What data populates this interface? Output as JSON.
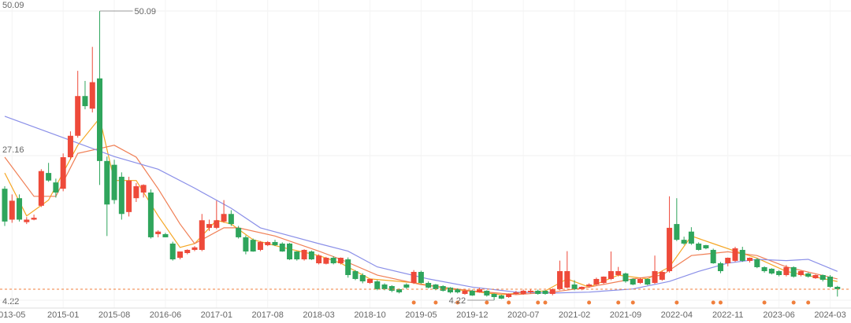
{
  "chart_data": {
    "type": "candlestick",
    "up_color": "#ee4a3a",
    "down_color": "#2fa55c",
    "ylim": [
      4.22,
      50.09
    ],
    "yticks": [
      4.22,
      27.16,
      50.09
    ],
    "grid": true,
    "categories": [
      null,
      "013-05",
      null,
      null,
      null,
      null,
      null,
      null,
      "2015-01",
      null,
      null,
      null,
      null,
      null,
      null,
      "2015-08",
      null,
      null,
      null,
      null,
      null,
      null,
      "2016-06",
      null,
      null,
      null,
      null,
      null,
      null,
      "2017-01",
      null,
      null,
      null,
      null,
      null,
      null,
      "2017-08",
      null,
      null,
      null,
      null,
      null,
      null,
      "2018-03",
      null,
      null,
      null,
      null,
      null,
      null,
      "2018-10",
      null,
      null,
      null,
      null,
      null,
      null,
      "2019-05",
      null,
      null,
      null,
      null,
      null,
      null,
      "2019-12",
      null,
      null,
      null,
      null,
      null,
      null,
      "2020-07",
      null,
      null,
      null,
      null,
      null,
      null,
      "2021-02",
      null,
      null,
      null,
      null,
      null,
      null,
      "2021-09",
      null,
      null,
      null,
      null,
      null,
      null,
      "2022-04",
      null,
      null,
      null,
      null,
      null,
      null,
      "2022-11",
      null,
      null,
      null,
      null,
      null,
      null,
      "2023-06",
      null,
      null,
      null,
      null,
      null,
      null,
      "2024-03",
      null
    ],
    "ohlc": [
      [
        21.9,
        22.3,
        16.0,
        16.7
      ],
      [
        17.0,
        21.0,
        16.5,
        20.0
      ],
      [
        20.4,
        21.0,
        16.7,
        17.0
      ],
      [
        16.6,
        17.4,
        16.3,
        17.0
      ],
      [
        17.0,
        17.8,
        16.9,
        17.3
      ],
      [
        19.2,
        25.0,
        19.0,
        24.7
      ],
      [
        24.4,
        26.0,
        23.0,
        23.2
      ],
      [
        22.9,
        23.5,
        20.5,
        21.3
      ],
      [
        21.9,
        27.5,
        21.5,
        26.9
      ],
      [
        26.9,
        31.0,
        26.5,
        30.3
      ],
      [
        30.3,
        40.6,
        30.0,
        36.6
      ],
      [
        36.6,
        39.0,
        34.5,
        35.0
      ],
      [
        34.6,
        44.4,
        34.0,
        38.8
      ],
      [
        39.4,
        50.09,
        22.5,
        26.3
      ],
      [
        26.3,
        27.0,
        14.4,
        19.4
      ],
      [
        25.7,
        26.5,
        19.5,
        20.1
      ],
      [
        23.8,
        24.5,
        17.0,
        17.9
      ],
      [
        18.2,
        23.8,
        17.5,
        23.2
      ],
      [
        20.4,
        22.8,
        19.8,
        22.3
      ],
      [
        21.3,
        22.6,
        20.5,
        22.5
      ],
      [
        21.3,
        21.8,
        14.0,
        14.2
      ],
      [
        14.7,
        15.3,
        14.2,
        15.1
      ],
      [
        14.7,
        14.9,
        14.2,
        14.2
      ],
      [
        13.2,
        13.5,
        10.5,
        10.7
      ],
      [
        10.95,
        11.9,
        10.7,
        11.95
      ],
      [
        11.7,
        12.3,
        11.5,
        12.2
      ],
      [
        12.2,
        12.8,
        12.0,
        12.6
      ],
      [
        12.2,
        17.9,
        12.0,
        16.9
      ],
      [
        15.7,
        17.0,
        15.2,
        16.3
      ],
      [
        15.7,
        20.0,
        15.5,
        16.9
      ],
      [
        16.7,
        20.1,
        16.5,
        17.9
      ],
      [
        17.9,
        18.5,
        16.0,
        16.3
      ],
      [
        15.7,
        16.0,
        14.0,
        14.2
      ],
      [
        14.2,
        14.5,
        11.5,
        11.95
      ],
      [
        13.8,
        14.0,
        11.9,
        11.95
      ],
      [
        12.2,
        13.6,
        12.0,
        13.45
      ],
      [
        12.95,
        13.6,
        12.8,
        13.45
      ],
      [
        13.45,
        13.8,
        12.8,
        12.95
      ],
      [
        13.2,
        13.4,
        11.9,
        11.95
      ],
      [
        13.2,
        13.3,
        10.6,
        10.7
      ],
      [
        11.95,
        12.0,
        10.5,
        10.7
      ],
      [
        10.7,
        12.3,
        10.5,
        12.2
      ],
      [
        11.95,
        12.1,
        10.6,
        10.7
      ],
      [
        10.08,
        11.5,
        9.9,
        11.3
      ],
      [
        10.0,
        11.1,
        9.9,
        10.95
      ],
      [
        10.95,
        11.2,
        9.9,
        10.08
      ],
      [
        10.08,
        11.0,
        9.9,
        10.95
      ],
      [
        10.7,
        11.0,
        7.8,
        8.21
      ],
      [
        8.83,
        9.0,
        7.4,
        7.59
      ],
      [
        8.21,
        8.5,
        6.9,
        7.21
      ],
      [
        6.96,
        7.6,
        6.8,
        7.59
      ],
      [
        7.21,
        7.4,
        5.8,
        5.97
      ],
      [
        6.71,
        6.9,
        5.8,
        5.97
      ],
      [
        6.46,
        6.6,
        5.5,
        5.72
      ],
      [
        5.97,
        6.1,
        5.3,
        5.47
      ],
      [
        6.71,
        6.9,
        6.0,
        6.22
      ],
      [
        6.96,
        9.0,
        6.8,
        8.71
      ],
      [
        8.71,
        8.9,
        6.8,
        6.96
      ],
      [
        6.96,
        7.2,
        6.1,
        6.22
      ],
      [
        6.71,
        6.8,
        5.8,
        5.97
      ],
      [
        6.46,
        6.6,
        5.6,
        5.72
      ],
      [
        6.22,
        6.3,
        5.3,
        5.47
      ],
      [
        5.97,
        6.1,
        5.3,
        5.47
      ],
      [
        5.22,
        5.9,
        5.1,
        5.72
      ],
      [
        5.72,
        5.9,
        4.9,
        4.97
      ],
      [
        5.47,
        6.2,
        5.4,
        5.97
      ],
      [
        5.72,
        5.8,
        4.8,
        4.97
      ],
      [
        5.22,
        5.3,
        4.22,
        4.72
      ],
      [
        4.97,
        5.1,
        4.4,
        4.47
      ],
      [
        4.72,
        5.3,
        4.6,
        5.22
      ],
      [
        5.22,
        5.7,
        5.1,
        5.47
      ],
      [
        5.22,
        5.9,
        5.1,
        5.72
      ],
      [
        5.47,
        6.0,
        5.3,
        5.72
      ],
      [
        5.72,
        5.9,
        5.1,
        5.22
      ],
      [
        5.72,
        5.8,
        5.1,
        5.22
      ],
      [
        5.22,
        6.1,
        5.0,
        5.97
      ],
      [
        5.97,
        10.5,
        5.8,
        8.83
      ],
      [
        6.22,
        12.0,
        6.1,
        8.83
      ],
      [
        6.71,
        7.4,
        5.8,
        5.97
      ],
      [
        5.97,
        6.4,
        5.8,
        6.34
      ],
      [
        6.46,
        6.9,
        6.2,
        6.71
      ],
      [
        6.71,
        7.8,
        6.6,
        7.59
      ],
      [
        6.96,
        8.0,
        6.8,
        7.96
      ],
      [
        7.59,
        11.95,
        7.4,
        8.83
      ],
      [
        8.21,
        9.5,
        8.0,
        8.83
      ],
      [
        8.46,
        8.6,
        7.0,
        7.21
      ],
      [
        7.59,
        7.7,
        6.6,
        6.71
      ],
      [
        6.96,
        7.8,
        6.8,
        7.59
      ],
      [
        7.59,
        7.7,
        6.6,
        6.71
      ],
      [
        6.96,
        11.3,
        6.8,
        8.83
      ],
      [
        7.46,
        8.9,
        7.3,
        8.71
      ],
      [
        8.83,
        20.7,
        8.6,
        15.7
      ],
      [
        16.3,
        20.4,
        13.6,
        13.8
      ],
      [
        13.8,
        14.3,
        13.0,
        13.2
      ],
      [
        15.1,
        15.8,
        13.0,
        13.2
      ],
      [
        13.2,
        13.4,
        12.1,
        12.2
      ],
      [
        12.95,
        13.0,
        12.3,
        12.45
      ],
      [
        12.2,
        12.4,
        10.0,
        10.08
      ],
      [
        10.08,
        10.3,
        8.5,
        8.83
      ],
      [
        10.08,
        11.0,
        9.6,
        10.95
      ],
      [
        10.46,
        12.7,
        10.3,
        12.45
      ],
      [
        12.2,
        12.7,
        10.3,
        10.46
      ],
      [
        10.46,
        11.0,
        10.2,
        10.95
      ],
      [
        10.7,
        10.9,
        9.3,
        9.46
      ],
      [
        9.46,
        9.6,
        8.6,
        8.83
      ],
      [
        9.21,
        9.3,
        8.3,
        8.46
      ],
      [
        8.83,
        9.0,
        8.0,
        8.21
      ],
      [
        8.21,
        9.8,
        8.0,
        9.46
      ],
      [
        9.46,
        9.6,
        7.8,
        7.96
      ],
      [
        8.21,
        8.9,
        8.0,
        8.83
      ],
      [
        8.46,
        8.6,
        7.8,
        7.96
      ],
      [
        7.71,
        8.3,
        7.6,
        8.21
      ],
      [
        8.21,
        8.3,
        7.2,
        7.46
      ],
      [
        7.96,
        8.2,
        6.2,
        6.34
      ],
      [
        6.34,
        6.5,
        4.8,
        5.97
      ]
    ],
    "lines": [
      {
        "color": "#f5a623",
        "x": [
          0,
          3,
          6,
          10,
          13,
          15,
          18,
          21,
          24,
          26,
          29,
          31,
          34,
          38,
          43,
          46,
          50,
          56,
          61,
          68,
          74,
          77,
          80,
          84,
          88,
          91,
          94,
          97,
          100,
          103,
          107,
          114
        ],
        "values": [
          24.4,
          17.6,
          20.1,
          28.8,
          33.1,
          23.2,
          23.2,
          17.6,
          12.6,
          13.2,
          16.9,
          16.3,
          13.8,
          12.6,
          11.3,
          10.1,
          7.6,
          7.0,
          6.0,
          5.1,
          5.7,
          7.6,
          6.3,
          8.2,
          7.6,
          9.5,
          14.4,
          13.2,
          12.0,
          10.9,
          8.8,
          7.2
        ]
      },
      {
        "color": "#f07f55",
        "x": [
          0,
          4,
          7,
          10,
          15,
          18,
          21,
          24,
          26,
          30,
          32,
          37,
          43,
          46,
          51,
          57,
          64,
          70,
          75,
          80,
          86,
          90,
          94,
          99,
          103,
          107,
          114
        ],
        "values": [
          26.9,
          20.7,
          20.7,
          27.5,
          28.8,
          26.9,
          21.9,
          16.3,
          13.2,
          15.7,
          15.7,
          14.4,
          12.0,
          10.7,
          8.2,
          6.7,
          5.7,
          5.1,
          5.5,
          6.3,
          7.6,
          8.2,
          11.3,
          11.9,
          11.3,
          9.5,
          7.6
        ]
      },
      {
        "color": "#8a8fe8",
        "x": [
          0,
          8,
          15,
          21,
          26,
          31,
          35,
          43,
          47,
          51,
          58,
          64,
          70,
          75,
          80,
          86,
          91,
          95,
          99,
          103,
          107,
          110,
          114
        ],
        "values": [
          33.4,
          30.0,
          27.0,
          25.0,
          22.0,
          18.8,
          15.7,
          13.2,
          12.0,
          9.5,
          7.6,
          6.3,
          5.5,
          5.35,
          5.5,
          6.0,
          7.2,
          8.8,
          10.1,
          10.7,
          10.5,
          10.7,
          8.8
        ]
      }
    ],
    "event_markers": [
      56,
      59,
      62,
      66,
      69,
      73,
      74,
      80,
      84,
      86,
      92,
      97,
      98,
      104,
      108,
      110
    ],
    "event_color": "#f07f3c",
    "max_label": "50.09",
    "min_label": "4.22"
  }
}
